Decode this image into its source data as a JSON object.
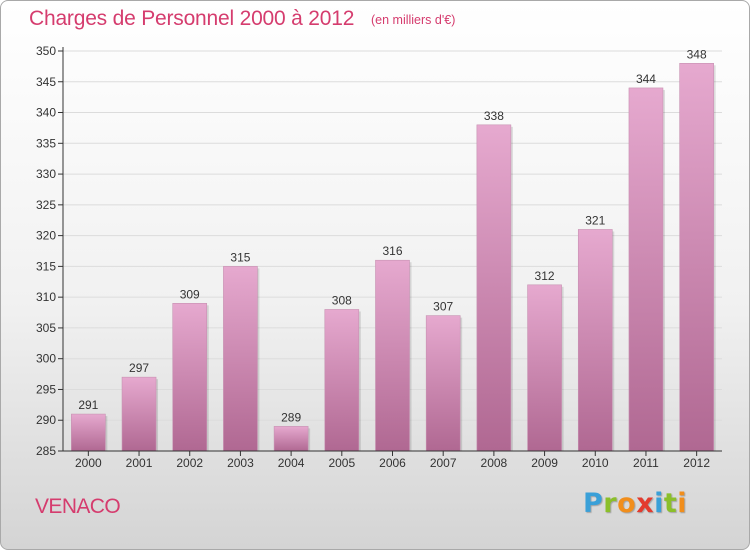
{
  "title": "Charges de Personnel 2000 à 2012",
  "unit_note": "(en milliers d'€)",
  "place": "VENACO",
  "brand": {
    "name": "Proxiti",
    "letter_colors": [
      "#3aa0d8",
      "#8bbf2a",
      "#f18e1c",
      "#e33b2e",
      "#3aa0d8",
      "#8bbf2a",
      "#f18e1c"
    ]
  },
  "colors": {
    "title": "#d53c6e",
    "bar_light": "#e6a9cf",
    "bar_dark": "#b06892",
    "grid": "#dcdcdc",
    "axis": "#333333"
  },
  "chart_data": {
    "type": "bar",
    "categories": [
      "2000",
      "2001",
      "2002",
      "2003",
      "2004",
      "2005",
      "2006",
      "2007",
      "2008",
      "2009",
      "2010",
      "2011",
      "2012"
    ],
    "values": [
      291,
      297,
      309,
      315,
      289,
      308,
      316,
      307,
      338,
      312,
      321,
      344,
      348
    ],
    "ylim": [
      285,
      350
    ],
    "yticks": [
      285,
      290,
      295,
      300,
      305,
      310,
      315,
      320,
      325,
      330,
      335,
      340,
      345,
      350
    ],
    "grid": true,
    "data_labels": true
  }
}
